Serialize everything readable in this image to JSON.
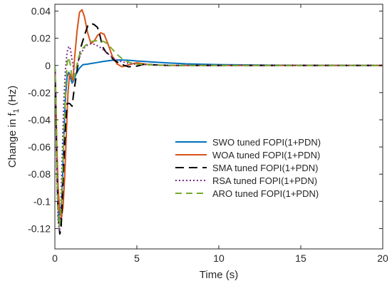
{
  "chart_data": {
    "type": "line",
    "title": "",
    "xlabel": "Time (s)",
    "ylabel_main": "Change in f",
    "ylabel_sub": "1",
    "ylabel_unit": " (Hz)",
    "xlim": [
      0,
      20
    ],
    "ylim": [
      -0.135,
      0.045
    ],
    "xticks": [
      0,
      5,
      10,
      15,
      20
    ],
    "xtick_labels": [
      "0",
      "5",
      "10",
      "15",
      "20"
    ],
    "yticks": [
      0.04,
      0.02,
      0,
      -0.02,
      -0.04,
      -0.06,
      -0.08,
      -0.1,
      -0.12
    ],
    "ytick_labels": [
      "0.04",
      "0.02",
      "0",
      "-0.02",
      "-0.04",
      "-0.06",
      "-0.08",
      "-0.1",
      "-0.12"
    ],
    "grid": false,
    "legend_position": "center-right",
    "series": [
      {
        "name": "SWO tuned FOPI(1+PDN)",
        "color": "#0072BD",
        "dash": "solid",
        "x": [
          0,
          0.05,
          0.12,
          0.2,
          0.28,
          0.36,
          0.45,
          0.55,
          0.65,
          0.75,
          0.85,
          0.95,
          1.05,
          1.15,
          1.3,
          1.5,
          1.7,
          2.0,
          2.5,
          3.0,
          3.5,
          4.0,
          4.5,
          5.0,
          6.0,
          7.0,
          8.0,
          10.0,
          12.0,
          15.0,
          20.0
        ],
        "y": [
          0,
          -0.02,
          -0.065,
          -0.1,
          -0.118,
          -0.115,
          -0.09,
          -0.052,
          -0.022,
          -0.008,
          -0.005,
          -0.009,
          -0.013,
          -0.011,
          -0.006,
          -0.002,
          0.0005,
          0.001,
          0.002,
          0.003,
          0.0038,
          0.004,
          0.0038,
          0.0033,
          0.0025,
          0.0018,
          0.0012,
          0.0006,
          0.0003,
          0.0001,
          0
        ]
      },
      {
        "name": "WOA tuned FOPI(1+PDN)",
        "color": "#D95319",
        "dash": "solid",
        "x": [
          0,
          0.05,
          0.12,
          0.2,
          0.3,
          0.4,
          0.5,
          0.6,
          0.7,
          0.8,
          0.9,
          1.0,
          1.1,
          1.2,
          1.35,
          1.5,
          1.65,
          1.8,
          2.0,
          2.2,
          2.4,
          2.6,
          2.8,
          3.0,
          3.2,
          3.5,
          3.8,
          4.1,
          4.5,
          5.0,
          5.5,
          6.0,
          7.0,
          8.0,
          10.0,
          20.0
        ],
        "y": [
          0,
          -0.02,
          -0.06,
          -0.09,
          -0.108,
          -0.112,
          -0.104,
          -0.082,
          -0.05,
          -0.02,
          -0.006,
          -0.008,
          -0.011,
          0.005,
          0.025,
          0.039,
          0.041,
          0.036,
          0.024,
          0.016,
          0.018,
          0.022,
          0.024,
          0.023,
          0.017,
          0.007,
          0.001,
          -0.001,
          0.0005,
          0.002,
          0.001,
          0.0003,
          0,
          0,
          0,
          0
        ]
      },
      {
        "name": "SMA tuned FOPI(1+PDN)",
        "color": "#000000",
        "dash": "12 7",
        "x": [
          0,
          0.05,
          0.12,
          0.2,
          0.3,
          0.38,
          0.45,
          0.55,
          0.65,
          0.75,
          0.9,
          1.05,
          1.15,
          1.3,
          1.45,
          1.6,
          1.8,
          2.0,
          2.2,
          2.4,
          2.6,
          2.75,
          2.9,
          3.1,
          3.3,
          3.6,
          4.0,
          4.5,
          5.0,
          5.5,
          6.0,
          7.0,
          8.0,
          10.0,
          20.0
        ],
        "y": [
          0,
          -0.025,
          -0.075,
          -0.11,
          -0.124,
          -0.12,
          -0.1,
          -0.07,
          -0.044,
          -0.028,
          -0.028,
          -0.03,
          -0.02,
          -0.008,
          0.004,
          0.014,
          0.022,
          0.029,
          0.031,
          0.03,
          0.028,
          0.022,
          0.014,
          0.01,
          0.008,
          0.004,
          0.001,
          -0.001,
          -0.0005,
          0.001,
          0.0005,
          0,
          0,
          0,
          0
        ]
      },
      {
        "name": "RSA tuned FOPI(1+PDN)",
        "color": "#7E2F8E",
        "dash": "2 3",
        "x": [
          0,
          0.05,
          0.12,
          0.2,
          0.28,
          0.36,
          0.45,
          0.55,
          0.65,
          0.75,
          0.85,
          0.95,
          1.05,
          1.15,
          1.3,
          1.45,
          1.6,
          1.8,
          2.0,
          2.2,
          2.4,
          2.6,
          2.8,
          3.0,
          3.3,
          3.6,
          4.0,
          4.5,
          5.0,
          6.0,
          7.0,
          8.0,
          10.0,
          20.0
        ],
        "y": [
          0,
          -0.03,
          -0.085,
          -0.115,
          -0.122,
          -0.105,
          -0.065,
          -0.025,
          -0.002,
          0.01,
          0.014,
          0.012,
          0.004,
          -0.003,
          -0.002,
          0.004,
          0.009,
          0.013,
          0.015,
          0.016,
          0.0155,
          0.0145,
          0.013,
          0.011,
          0.008,
          0.005,
          0.003,
          0.0015,
          0.0008,
          0.0003,
          0.0001,
          0,
          0,
          0
        ]
      },
      {
        "name": "ARO tuned FOPI(1+PDN)",
        "color": "#77AC30",
        "dash": "9 6",
        "x": [
          0,
          0.05,
          0.12,
          0.2,
          0.28,
          0.36,
          0.45,
          0.55,
          0.65,
          0.75,
          0.85,
          0.95,
          1.05,
          1.15,
          1.3,
          1.45,
          1.6,
          1.8,
          2.0,
          2.2,
          2.4,
          2.6,
          2.8,
          3.0,
          3.2,
          3.5,
          3.8,
          4.2,
          4.6,
          5.0,
          6.0,
          7.0,
          8.0,
          10.0,
          20.0
        ],
        "y": [
          0,
          -0.025,
          -0.075,
          -0.108,
          -0.118,
          -0.11,
          -0.085,
          -0.05,
          -0.018,
          0.002,
          0.006,
          0.0,
          -0.01,
          -0.01,
          -0.002,
          0.006,
          0.011,
          0.014,
          0.016,
          0.0175,
          0.018,
          0.0182,
          0.018,
          0.0175,
          0.016,
          0.012,
          0.008,
          0.004,
          0.002,
          0.001,
          0.0004,
          0.0001,
          0,
          0,
          0
        ]
      }
    ]
  }
}
